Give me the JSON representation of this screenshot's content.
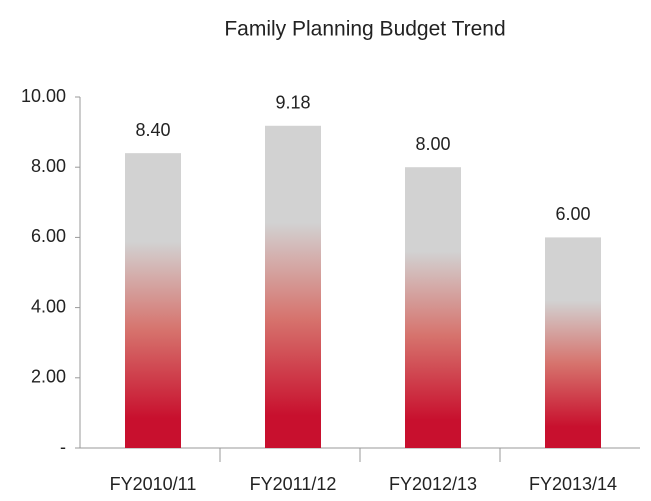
{
  "chart_data": {
    "type": "bar",
    "title": "Family Planning Budget Trend",
    "categories": [
      "FY2010/11",
      "FY2011/12",
      "FY2012/13",
      "FY2013/14"
    ],
    "values": [
      8.4,
      9.18,
      8,
      6
    ],
    "value_labels": [
      "8.40",
      "9.18",
      "8.00",
      "6.00"
    ],
    "color": "#c8102e",
    "ylim": [
      0,
      10
    ],
    "yticks": [
      {
        "value": 0,
        "label": "-"
      },
      {
        "value": 2,
        "label": "2.00"
      },
      {
        "value": 4,
        "label": "4.00"
      },
      {
        "value": 6,
        "label": "6.00"
      },
      {
        "value": 8,
        "label": "8.00"
      },
      {
        "value": 10,
        "label": "10.00"
      }
    ],
    "grid": false
  }
}
